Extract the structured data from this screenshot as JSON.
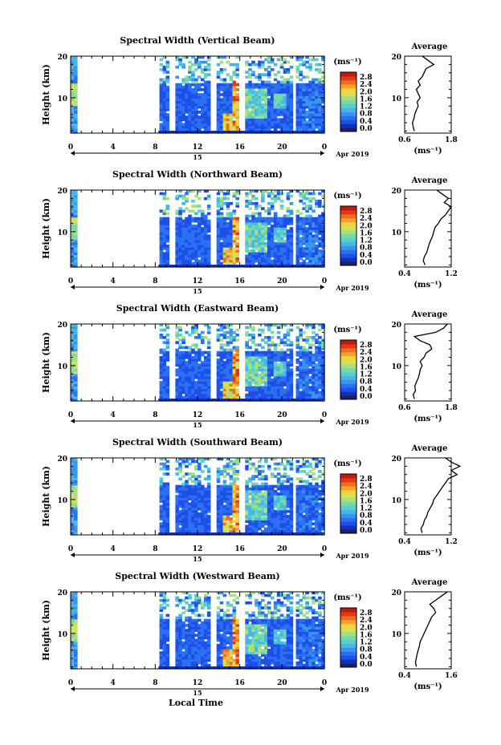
{
  "figure": {
    "x_axis_title": "Local Time",
    "date_label": "Apr 2019",
    "day_label": "15",
    "colorbar_unit": "(ms⁻¹)",
    "avg_title": "Average",
    "avg_xlabel": "(ms⁻¹)",
    "ylabel": "Height (km)"
  },
  "colors": {
    "scale": [
      "#202060",
      "#1030c0",
      "#1e4fe8",
      "#2a70f0",
      "#3a95ef",
      "#48b6e6",
      "#56cfcf",
      "#78d9a6",
      "#a8e07c",
      "#d4e25a",
      "#f4d33c",
      "#f7a02a",
      "#f06d1e",
      "#e23a16",
      "#c21810"
    ],
    "line": "#000000",
    "background": "#ffffff"
  },
  "chart_data": [
    {
      "type": "heatmap",
      "title": "Spectral Width (Vertical Beam)",
      "x_ticks": [
        "0",
        "4",
        "8",
        "12",
        "16",
        "20",
        "0"
      ],
      "y_ticks": [
        "20",
        "10"
      ],
      "xlim": [
        0,
        24
      ],
      "ylim": [
        1.5,
        20
      ],
      "colorbar_ticks": [
        "2.8",
        "2.4",
        "2.0",
        "1.6",
        "1.2",
        "0.8",
        "0.4",
        "0.0"
      ],
      "average": {
        "type": "line",
        "x_ticks": [
          "0.6",
          "1.8"
        ],
        "xlim": [
          0.6,
          1.8
        ],
        "y_ticks": [
          "20",
          "10"
        ],
        "ylim": [
          1.5,
          20
        ],
        "profile_heights": [
          2,
          3,
          4,
          5,
          6,
          7,
          8,
          9,
          10,
          11,
          12,
          13,
          14,
          15,
          16,
          17,
          18,
          19,
          20
        ],
        "profile_values": [
          0.85,
          0.82,
          0.8,
          0.84,
          0.86,
          0.9,
          0.95,
          0.92,
          1.0,
          0.95,
          0.9,
          1.0,
          0.95,
          1.05,
          1.1,
          1.15,
          1.35,
          1.2,
          1.05
        ]
      }
    },
    {
      "type": "heatmap",
      "title": "Spectral Width (Northward Beam)",
      "x_ticks": [
        "0",
        "4",
        "8",
        "12",
        "16",
        "20",
        "0"
      ],
      "y_ticks": [
        "20",
        "10"
      ],
      "xlim": [
        0,
        24
      ],
      "ylim": [
        1.5,
        20
      ],
      "colorbar_ticks": [
        "2.8",
        "2.4",
        "2.0",
        "1.6",
        "1.2",
        "0.8",
        "0.4",
        "0.0"
      ],
      "average": {
        "type": "line",
        "x_ticks": [
          "0.4",
          "1.2"
        ],
        "xlim": [
          0.4,
          1.2
        ],
        "y_ticks": [
          "20",
          "10"
        ],
        "ylim": [
          1.5,
          20
        ],
        "profile_heights": [
          2,
          3,
          4,
          5,
          6,
          7,
          8,
          9,
          10,
          11,
          12,
          13,
          14,
          15,
          16,
          17,
          18,
          19,
          20
        ],
        "profile_values": [
          0.75,
          0.72,
          0.74,
          0.78,
          0.8,
          0.82,
          0.85,
          0.88,
          0.9,
          0.92,
          0.98,
          1.02,
          1.1,
          1.15,
          1.2,
          1.08,
          1.15,
          1.05,
          0.95
        ]
      }
    },
    {
      "type": "heatmap",
      "title": "Spectral Width (Eastward Beam)",
      "x_ticks": [
        "0",
        "4",
        "8",
        "12",
        "16",
        "20",
        "0"
      ],
      "y_ticks": [
        "20",
        "10"
      ],
      "xlim": [
        0,
        24
      ],
      "ylim": [
        1.5,
        20
      ],
      "colorbar_ticks": [
        "2.8",
        "2.4",
        "2.0",
        "1.6",
        "1.2",
        "0.8",
        "0.4",
        "0.0"
      ],
      "average": {
        "type": "line",
        "x_ticks": [
          "0.6",
          "1.8"
        ],
        "xlim": [
          0.6,
          1.8
        ],
        "y_ticks": [
          "20",
          "10"
        ],
        "ylim": [
          1.5,
          20
        ],
        "profile_heights": [
          2,
          3,
          4,
          5,
          6,
          7,
          8,
          9,
          10,
          11,
          12,
          13,
          14,
          15,
          16,
          17,
          18,
          19,
          20
        ],
        "profile_values": [
          0.85,
          0.82,
          0.88,
          0.86,
          0.9,
          0.95,
          0.98,
          1.0,
          1.05,
          1.0,
          1.1,
          1.15,
          1.3,
          1.25,
          1.0,
          0.85,
          1.4,
          1.6,
          1.7
        ]
      }
    },
    {
      "type": "heatmap",
      "title": "Spectral Width (Southward Beam)",
      "x_ticks": [
        "0",
        "4",
        "8",
        "12",
        "16",
        "20",
        "0"
      ],
      "y_ticks": [
        "20",
        "10"
      ],
      "xlim": [
        0,
        24
      ],
      "ylim": [
        1.5,
        20
      ],
      "colorbar_ticks": [
        "2.8",
        "2.4",
        "2.0",
        "1.6",
        "1.2",
        "0.8",
        "0.4",
        "0.0"
      ],
      "average": {
        "type": "line",
        "x_ticks": [
          "0.4",
          "1.2"
        ],
        "xlim": [
          0.4,
          1.2
        ],
        "y_ticks": [
          "20",
          "10"
        ],
        "ylim": [
          1.5,
          20
        ],
        "profile_heights": [
          2,
          3,
          4,
          5,
          6,
          7,
          8,
          9,
          10,
          11,
          12,
          13,
          14,
          15,
          16,
          17,
          18,
          19,
          20
        ],
        "profile_values": [
          0.7,
          0.68,
          0.72,
          0.74,
          0.78,
          0.8,
          0.84,
          0.88,
          0.9,
          0.95,
          1.0,
          1.05,
          1.1,
          1.15,
          1.3,
          1.2,
          1.35,
          1.2,
          1.1
        ]
      }
    },
    {
      "type": "heatmap",
      "title": "Spectral Width (Westward Beam)",
      "x_ticks": [
        "0",
        "4",
        "8",
        "12",
        "16",
        "20",
        "0"
      ],
      "y_ticks": [
        "20",
        "10"
      ],
      "xlim": [
        0,
        24
      ],
      "ylim": [
        1.5,
        20
      ],
      "colorbar_ticks": [
        "2.8",
        "2.4",
        "2.0",
        "1.6",
        "1.2",
        "0.8",
        "0.4",
        "0.0"
      ],
      "average": {
        "type": "line",
        "x_ticks": [
          "0.4",
          "1.6"
        ],
        "xlim": [
          0.4,
          1.6
        ],
        "y_ticks": [
          "20",
          "10"
        ],
        "ylim": [
          1.5,
          20
        ],
        "profile_heights": [
          2,
          3,
          4,
          5,
          6,
          7,
          8,
          9,
          10,
          11,
          12,
          13,
          14,
          15,
          16,
          17,
          18,
          19,
          20
        ],
        "profile_values": [
          0.7,
          0.68,
          0.7,
          0.72,
          0.75,
          0.78,
          0.8,
          0.85,
          0.9,
          0.95,
          1.0,
          1.05,
          1.1,
          1.2,
          1.15,
          1.05,
          1.2,
          1.35,
          1.5
        ]
      }
    }
  ]
}
